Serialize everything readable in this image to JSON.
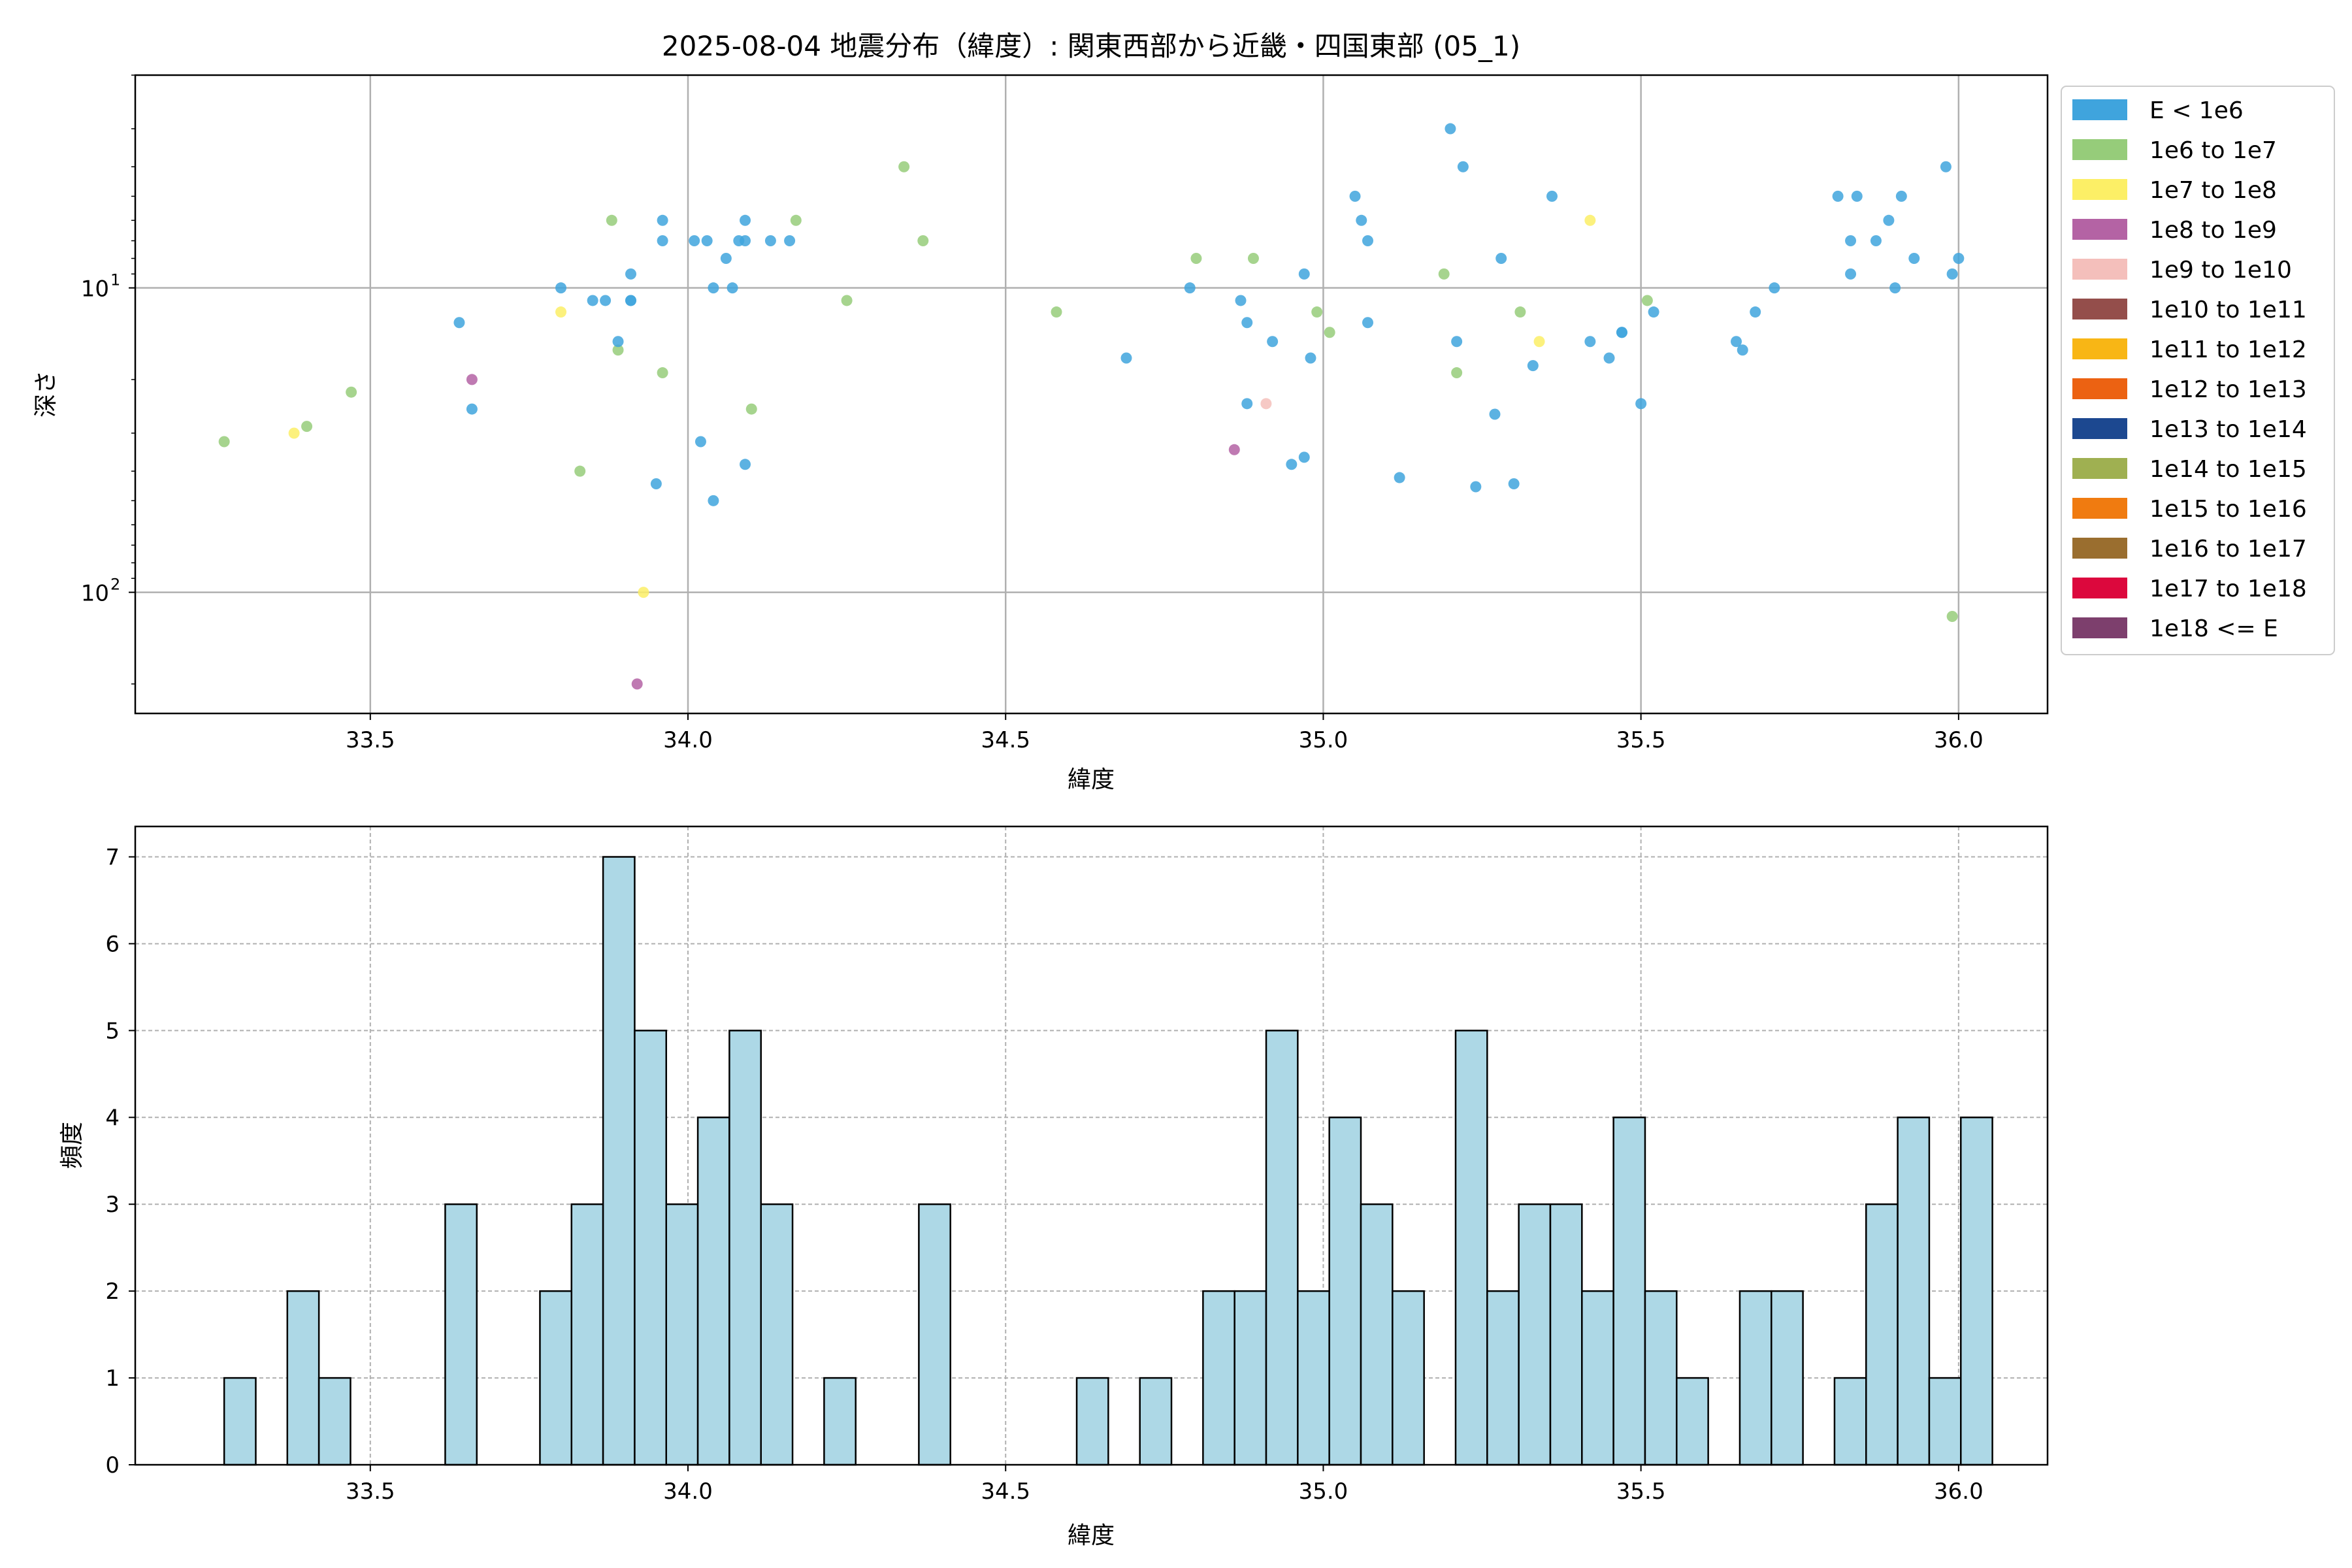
{
  "chart_data": [
    {
      "type": "scatter",
      "title": "2025-08-04 地震分布（緯度）: 関東西部から近畿・四国東部 (05_1)",
      "xlabel": "緯度",
      "ylabel": "深さ",
      "xlim": [
        33.13,
        36.14
      ],
      "ylim": [
        250,
        2
      ],
      "yscale": "log (inverted)",
      "x_ticks": [
        "33.5",
        "34.0",
        "34.5",
        "35.0",
        "35.5",
        "36.0"
      ],
      "x_tick_values": [
        33.5,
        34.0,
        34.5,
        35.0,
        35.5,
        36.0
      ],
      "y_ticks": [
        "10",
        "10"
      ],
      "y_tick_exponents": [
        "1",
        "2"
      ],
      "y_tick_values": [
        10,
        100
      ],
      "grid": true,
      "legend_position": "outside right, top",
      "legend": [
        {
          "label": "E < 1e6",
          "color": "#3fa4dd"
        },
        {
          "label": "1e6 to 1e7",
          "color": "#96cc7a"
        },
        {
          "label": "1e7 to 1e8",
          "color": "#fcef66"
        },
        {
          "label": "1e8 to 1e9",
          "color": "#b463a4"
        },
        {
          "label": "1e9 to 1e10",
          "color": "#f4bfbb"
        },
        {
          "label": "1e10 to 1e11",
          "color": "#944e4b"
        },
        {
          "label": "1e11 to 1e12",
          "color": "#f8b615"
        },
        {
          "label": "1e12 to 1e13",
          "color": "#ec6212"
        },
        {
          "label": "1e13 to 1e14",
          "color": "#1c4890"
        },
        {
          "label": "1e14 to 1e15",
          "color": "#9fb051"
        },
        {
          "label": "1e15 to 1e16",
          "color": "#f07b10"
        },
        {
          "label": "1e16 to 1e17",
          "color": "#9a6e2f"
        },
        {
          "label": "1e17 to 1e18",
          "color": "#dc083d"
        },
        {
          "label": "1e18 <= E",
          "color": "#7d3f6d"
        }
      ],
      "points": [
        {
          "x": 33.27,
          "y": 32,
          "c": 1
        },
        {
          "x": 33.38,
          "y": 30,
          "c": 2
        },
        {
          "x": 33.4,
          "y": 28.5,
          "c": 1
        },
        {
          "x": 33.47,
          "y": 22,
          "c": 1
        },
        {
          "x": 33.64,
          "y": 13,
          "c": 0
        },
        {
          "x": 33.66,
          "y": 20,
          "c": 3
        },
        {
          "x": 33.66,
          "y": 25,
          "c": 0
        },
        {
          "x": 33.8,
          "y": 10,
          "c": 0
        },
        {
          "x": 33.8,
          "y": 12,
          "c": 2
        },
        {
          "x": 33.83,
          "y": 40,
          "c": 1
        },
        {
          "x": 33.85,
          "y": 11,
          "c": 0
        },
        {
          "x": 33.87,
          "y": 11,
          "c": 0
        },
        {
          "x": 33.88,
          "y": 6,
          "c": 1
        },
        {
          "x": 33.89,
          "y": 16,
          "c": 1
        },
        {
          "x": 33.89,
          "y": 15,
          "c": 0
        },
        {
          "x": 33.91,
          "y": 9,
          "c": 0
        },
        {
          "x": 33.91,
          "y": 11,
          "c": 0
        },
        {
          "x": 33.91,
          "y": 11,
          "c": 0
        },
        {
          "x": 33.92,
          "y": 200,
          "c": 3
        },
        {
          "x": 33.93,
          "y": 100,
          "c": 2
        },
        {
          "x": 33.95,
          "y": 44,
          "c": 0
        },
        {
          "x": 33.96,
          "y": 19,
          "c": 1
        },
        {
          "x": 33.96,
          "y": 6,
          "c": 0
        },
        {
          "x": 33.96,
          "y": 7,
          "c": 0
        },
        {
          "x": 34.01,
          "y": 7,
          "c": 0
        },
        {
          "x": 34.02,
          "y": 32,
          "c": 0
        },
        {
          "x": 34.03,
          "y": 7,
          "c": 0
        },
        {
          "x": 34.04,
          "y": 10,
          "c": 0
        },
        {
          "x": 34.04,
          "y": 50,
          "c": 0
        },
        {
          "x": 34.06,
          "y": 8,
          "c": 0
        },
        {
          "x": 34.07,
          "y": 10,
          "c": 0
        },
        {
          "x": 34.08,
          "y": 7,
          "c": 0
        },
        {
          "x": 34.09,
          "y": 38,
          "c": 0
        },
        {
          "x": 34.09,
          "y": 6,
          "c": 0
        },
        {
          "x": 34.09,
          "y": 7,
          "c": 0
        },
        {
          "x": 34.1,
          "y": 25,
          "c": 1
        },
        {
          "x": 34.13,
          "y": 7,
          "c": 0
        },
        {
          "x": 34.16,
          "y": 7,
          "c": 0
        },
        {
          "x": 34.17,
          "y": 6,
          "c": 1
        },
        {
          "x": 34.25,
          "y": 11,
          "c": 1
        },
        {
          "x": 34.34,
          "y": 4,
          "c": 1
        },
        {
          "x": 34.37,
          "y": 7,
          "c": 1
        },
        {
          "x": 34.58,
          "y": 12,
          "c": 1
        },
        {
          "x": 34.69,
          "y": 17,
          "c": 0
        },
        {
          "x": 34.79,
          "y": 10,
          "c": 0
        },
        {
          "x": 34.8,
          "y": 8,
          "c": 1
        },
        {
          "x": 34.86,
          "y": 34,
          "c": 3
        },
        {
          "x": 34.87,
          "y": 11,
          "c": 0
        },
        {
          "x": 34.88,
          "y": 13,
          "c": 0
        },
        {
          "x": 34.88,
          "y": 24,
          "c": 0
        },
        {
          "x": 34.89,
          "y": 8,
          "c": 1
        },
        {
          "x": 34.91,
          "y": 24,
          "c": 4
        },
        {
          "x": 34.92,
          "y": 15,
          "c": 0
        },
        {
          "x": 34.95,
          "y": 38,
          "c": 0
        },
        {
          "x": 34.97,
          "y": 36,
          "c": 0
        },
        {
          "x": 34.97,
          "y": 9,
          "c": 0
        },
        {
          "x": 34.98,
          "y": 17,
          "c": 0
        },
        {
          "x": 34.99,
          "y": 12,
          "c": 1
        },
        {
          "x": 35.01,
          "y": 14,
          "c": 1
        },
        {
          "x": 35.05,
          "y": 5,
          "c": 0
        },
        {
          "x": 35.06,
          "y": 6,
          "c": 0
        },
        {
          "x": 35.07,
          "y": 7,
          "c": 0
        },
        {
          "x": 35.07,
          "y": 13,
          "c": 0
        },
        {
          "x": 35.12,
          "y": 42,
          "c": 0
        },
        {
          "x": 35.19,
          "y": 9,
          "c": 1
        },
        {
          "x": 35.2,
          "y": 3,
          "c": 0
        },
        {
          "x": 35.21,
          "y": 15,
          "c": 0
        },
        {
          "x": 35.21,
          "y": 19,
          "c": 1
        },
        {
          "x": 35.22,
          "y": 4,
          "c": 0
        },
        {
          "x": 35.24,
          "y": 45,
          "c": 0
        },
        {
          "x": 35.27,
          "y": 26,
          "c": 0
        },
        {
          "x": 35.28,
          "y": 8,
          "c": 0
        },
        {
          "x": 35.3,
          "y": 44,
          "c": 0
        },
        {
          "x": 35.31,
          "y": 12,
          "c": 1
        },
        {
          "x": 35.33,
          "y": 18,
          "c": 0
        },
        {
          "x": 35.34,
          "y": 15,
          "c": 2
        },
        {
          "x": 35.36,
          "y": 5,
          "c": 0
        },
        {
          "x": 35.42,
          "y": 6,
          "c": 2
        },
        {
          "x": 35.42,
          "y": 15,
          "c": 0
        },
        {
          "x": 35.45,
          "y": 17,
          "c": 0
        },
        {
          "x": 35.47,
          "y": 14,
          "c": 0
        },
        {
          "x": 35.47,
          "y": 14,
          "c": 0
        },
        {
          "x": 35.5,
          "y": 24,
          "c": 0
        },
        {
          "x": 35.51,
          "y": 11,
          "c": 1
        },
        {
          "x": 35.52,
          "y": 12,
          "c": 0
        },
        {
          "x": 35.65,
          "y": 15,
          "c": 0
        },
        {
          "x": 35.66,
          "y": 16,
          "c": 0
        },
        {
          "x": 35.68,
          "y": 12,
          "c": 0
        },
        {
          "x": 35.71,
          "y": 10,
          "c": 0
        },
        {
          "x": 35.81,
          "y": 5,
          "c": 0
        },
        {
          "x": 35.83,
          "y": 9,
          "c": 0
        },
        {
          "x": 35.83,
          "y": 7,
          "c": 0
        },
        {
          "x": 35.84,
          "y": 5,
          "c": 0
        },
        {
          "x": 35.87,
          "y": 7,
          "c": 0
        },
        {
          "x": 35.89,
          "y": 6,
          "c": 0
        },
        {
          "x": 35.9,
          "y": 10,
          "c": 0
        },
        {
          "x": 35.91,
          "y": 5,
          "c": 0
        },
        {
          "x": 35.93,
          "y": 8,
          "c": 0
        },
        {
          "x": 35.98,
          "y": 4,
          "c": 0
        },
        {
          "x": 35.99,
          "y": 9,
          "c": 0
        },
        {
          "x": 36.0,
          "y": 8,
          "c": 0
        },
        {
          "x": 35.99,
          "y": 120,
          "c": 1
        }
      ]
    },
    {
      "type": "bar",
      "title": "",
      "xlabel": "緯度",
      "ylabel": "頻度",
      "xlim": [
        33.13,
        36.14
      ],
      "ylim": [
        0,
        7.35
      ],
      "x_ticks": [
        "33.5",
        "34.0",
        "34.5",
        "35.0",
        "35.5",
        "36.0"
      ],
      "x_tick_values": [
        33.5,
        34.0,
        34.5,
        35.0,
        35.5,
        36.0
      ],
      "y_ticks": [
        "0",
        "1",
        "2",
        "3",
        "4",
        "5",
        "6",
        "7"
      ],
      "y_tick_values": [
        0,
        1,
        2,
        3,
        4,
        5,
        6,
        7
      ],
      "grid": "dashed",
      "bar_color": "#add8e6",
      "bin_start": 33.27,
      "bin_width": 0.0497,
      "counts": [
        1,
        0,
        2,
        1,
        0,
        0,
        0,
        3,
        0,
        0,
        2,
        3,
        7,
        5,
        3,
        4,
        5,
        3,
        0,
        1,
        0,
        0,
        3,
        0,
        0,
        0,
        0,
        1,
        0,
        1,
        0,
        2,
        2,
        5,
        2,
        4,
        3,
        2,
        0,
        5,
        2,
        3,
        3,
        2,
        4,
        2,
        1,
        0,
        2,
        2,
        0,
        1,
        3,
        4,
        1,
        4
      ]
    }
  ]
}
